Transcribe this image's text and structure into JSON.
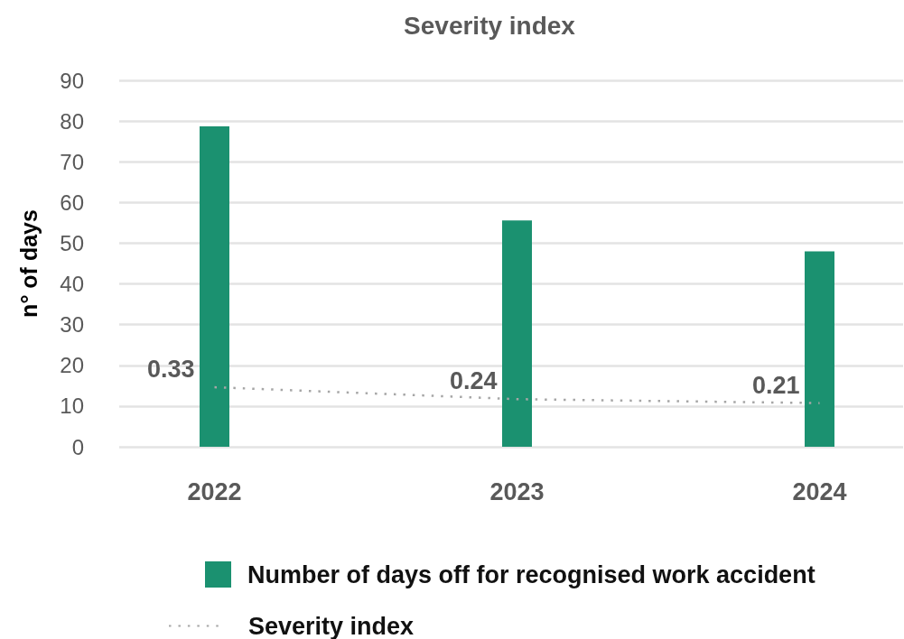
{
  "chart_data": {
    "type": "bar",
    "title": "Severity index",
    "ylabel": "n° of days",
    "categories": [
      "2022",
      "2023",
      "2024"
    ],
    "series": [
      {
        "name": "Number of days off for recognised work accident",
        "type": "bar",
        "color": "#1b9170",
        "values": [
          78.7,
          55.6,
          48.0
        ]
      },
      {
        "name": "Severity index",
        "type": "line",
        "axis": "y2",
        "color": "#a6a6a6",
        "values": [
          0.33,
          0.24,
          0.21
        ],
        "value_labels": [
          "0.33",
          "0.24",
          "0.21"
        ],
        "line_style": "dotted",
        "marker": "none"
      }
    ],
    "ylim": [
      0,
      90
    ],
    "yticks": [
      0,
      10,
      20,
      30,
      40,
      50,
      60,
      70,
      80,
      90
    ],
    "y2lim": [
      -0.12,
      2.65
    ],
    "grid": "y",
    "legend": "bottom"
  }
}
